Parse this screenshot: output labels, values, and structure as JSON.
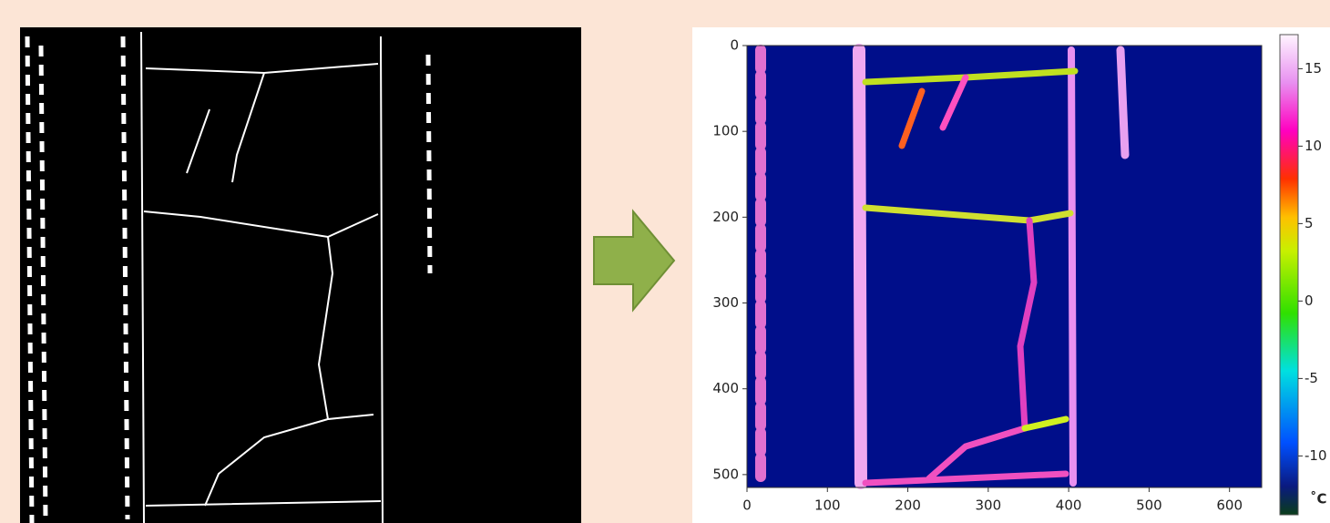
{
  "right_panel": {
    "xlim": [
      0,
      640
    ],
    "xticks": [
      0,
      100,
      200,
      300,
      400,
      500,
      600
    ],
    "ylim": [
      0,
      515
    ],
    "yticks": [
      0,
      100,
      200,
      300,
      400,
      500
    ],
    "colorbar": {
      "lim": [
        -13.8,
        17.2
      ],
      "ticks": [
        -10,
        -5,
        0,
        5,
        10,
        15
      ],
      "unit": "˚C"
    }
  }
}
